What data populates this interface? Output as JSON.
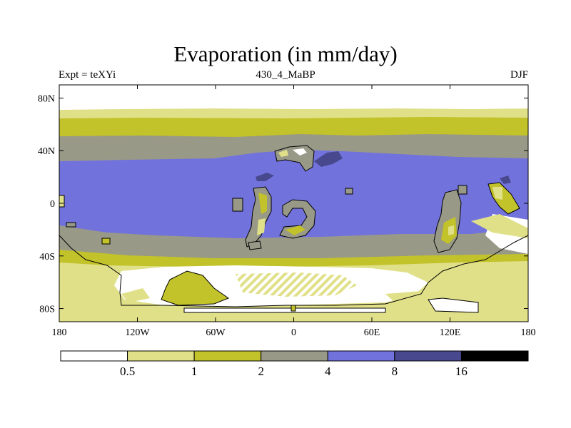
{
  "title": "Evaporation (in mm/day)",
  "subtitle_left": "Expt = teXYi",
  "subtitle_center": "430_4_MaBP",
  "subtitle_right": "DJF",
  "map": {
    "lon_range": [
      -180,
      180
    ],
    "lat_range": [
      -90,
      90
    ],
    "lat_ticks": [
      {
        "label": "80N",
        "value": 80
      },
      {
        "label": "40N",
        "value": 40
      },
      {
        "label": "0",
        "value": 0
      },
      {
        "label": "40S",
        "value": -40
      },
      {
        "label": "80S",
        "value": -80
      }
    ],
    "lon_ticks": [
      {
        "label": "180",
        "value": -180
      },
      {
        "label": "120W",
        "value": -120
      },
      {
        "label": "60W",
        "value": -60
      },
      {
        "label": "0",
        "value": 0
      },
      {
        "label": "60E",
        "value": 60
      },
      {
        "label": "120E",
        "value": 120
      },
      {
        "label": "180",
        "value": 180
      }
    ]
  },
  "colorbar": {
    "levels": [
      "0.5",
      "1",
      "2",
      "4",
      "8",
      "16"
    ],
    "colors": [
      "#ffffff",
      "#e0e089",
      "#c2c22a",
      "#999988",
      "#7272dd",
      "#48488e",
      "#000000"
    ]
  },
  "colors": {
    "white": "#ffffff",
    "light_yellow": "#e0e089",
    "olive": "#c2c22a",
    "gray": "#999988",
    "blue": "#7272dd",
    "dark_blue": "#48488e"
  }
}
